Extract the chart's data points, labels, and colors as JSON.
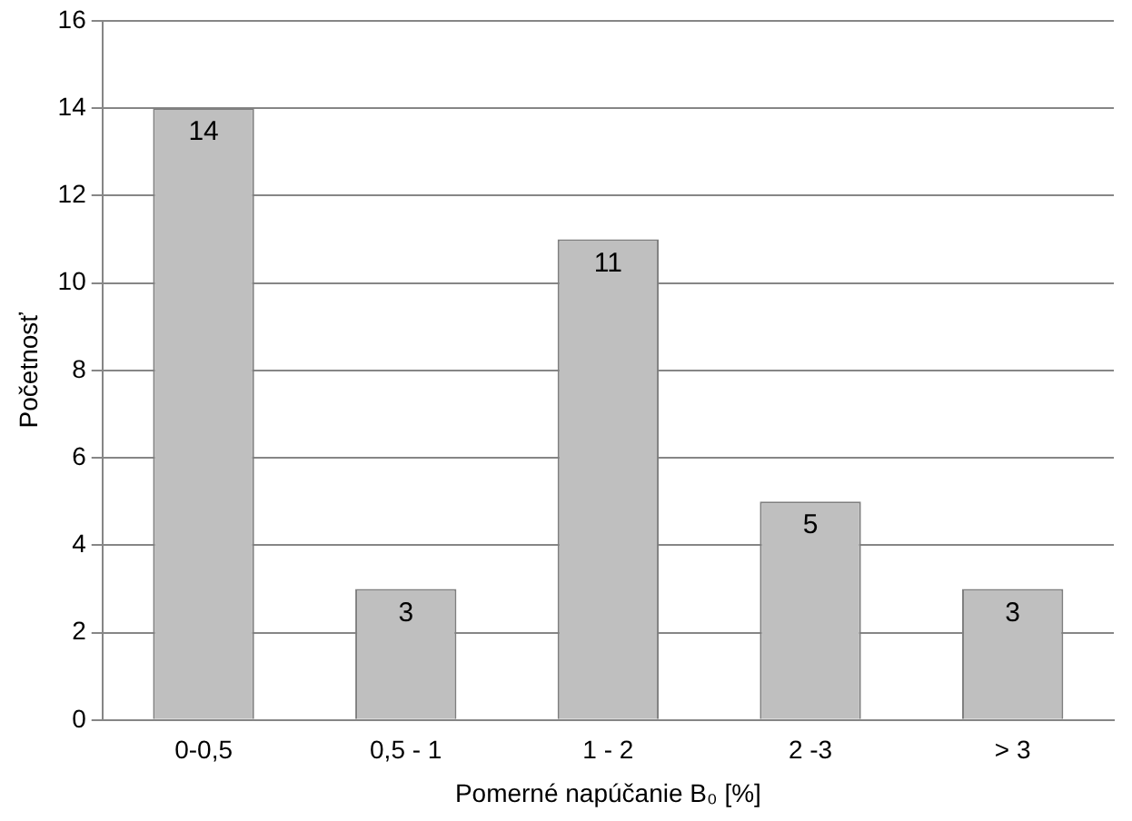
{
  "chart_data": {
    "type": "bar",
    "xlabel": "Pomerné napúčanie B₀ [%]",
    "ylabel": "Početnosť",
    "categories": [
      "0-0,5",
      "0,5 - 1",
      "1 - 2",
      "2 -3",
      "> 3"
    ],
    "values": [
      14,
      3,
      11,
      5,
      3
    ],
    "color": "#bfbfbf",
    "ylim": [
      0,
      16
    ],
    "yticks": [
      0,
      2,
      4,
      6,
      8,
      10,
      12,
      14,
      16
    ],
    "grid": "y",
    "legend": false,
    "data_labels": true
  }
}
